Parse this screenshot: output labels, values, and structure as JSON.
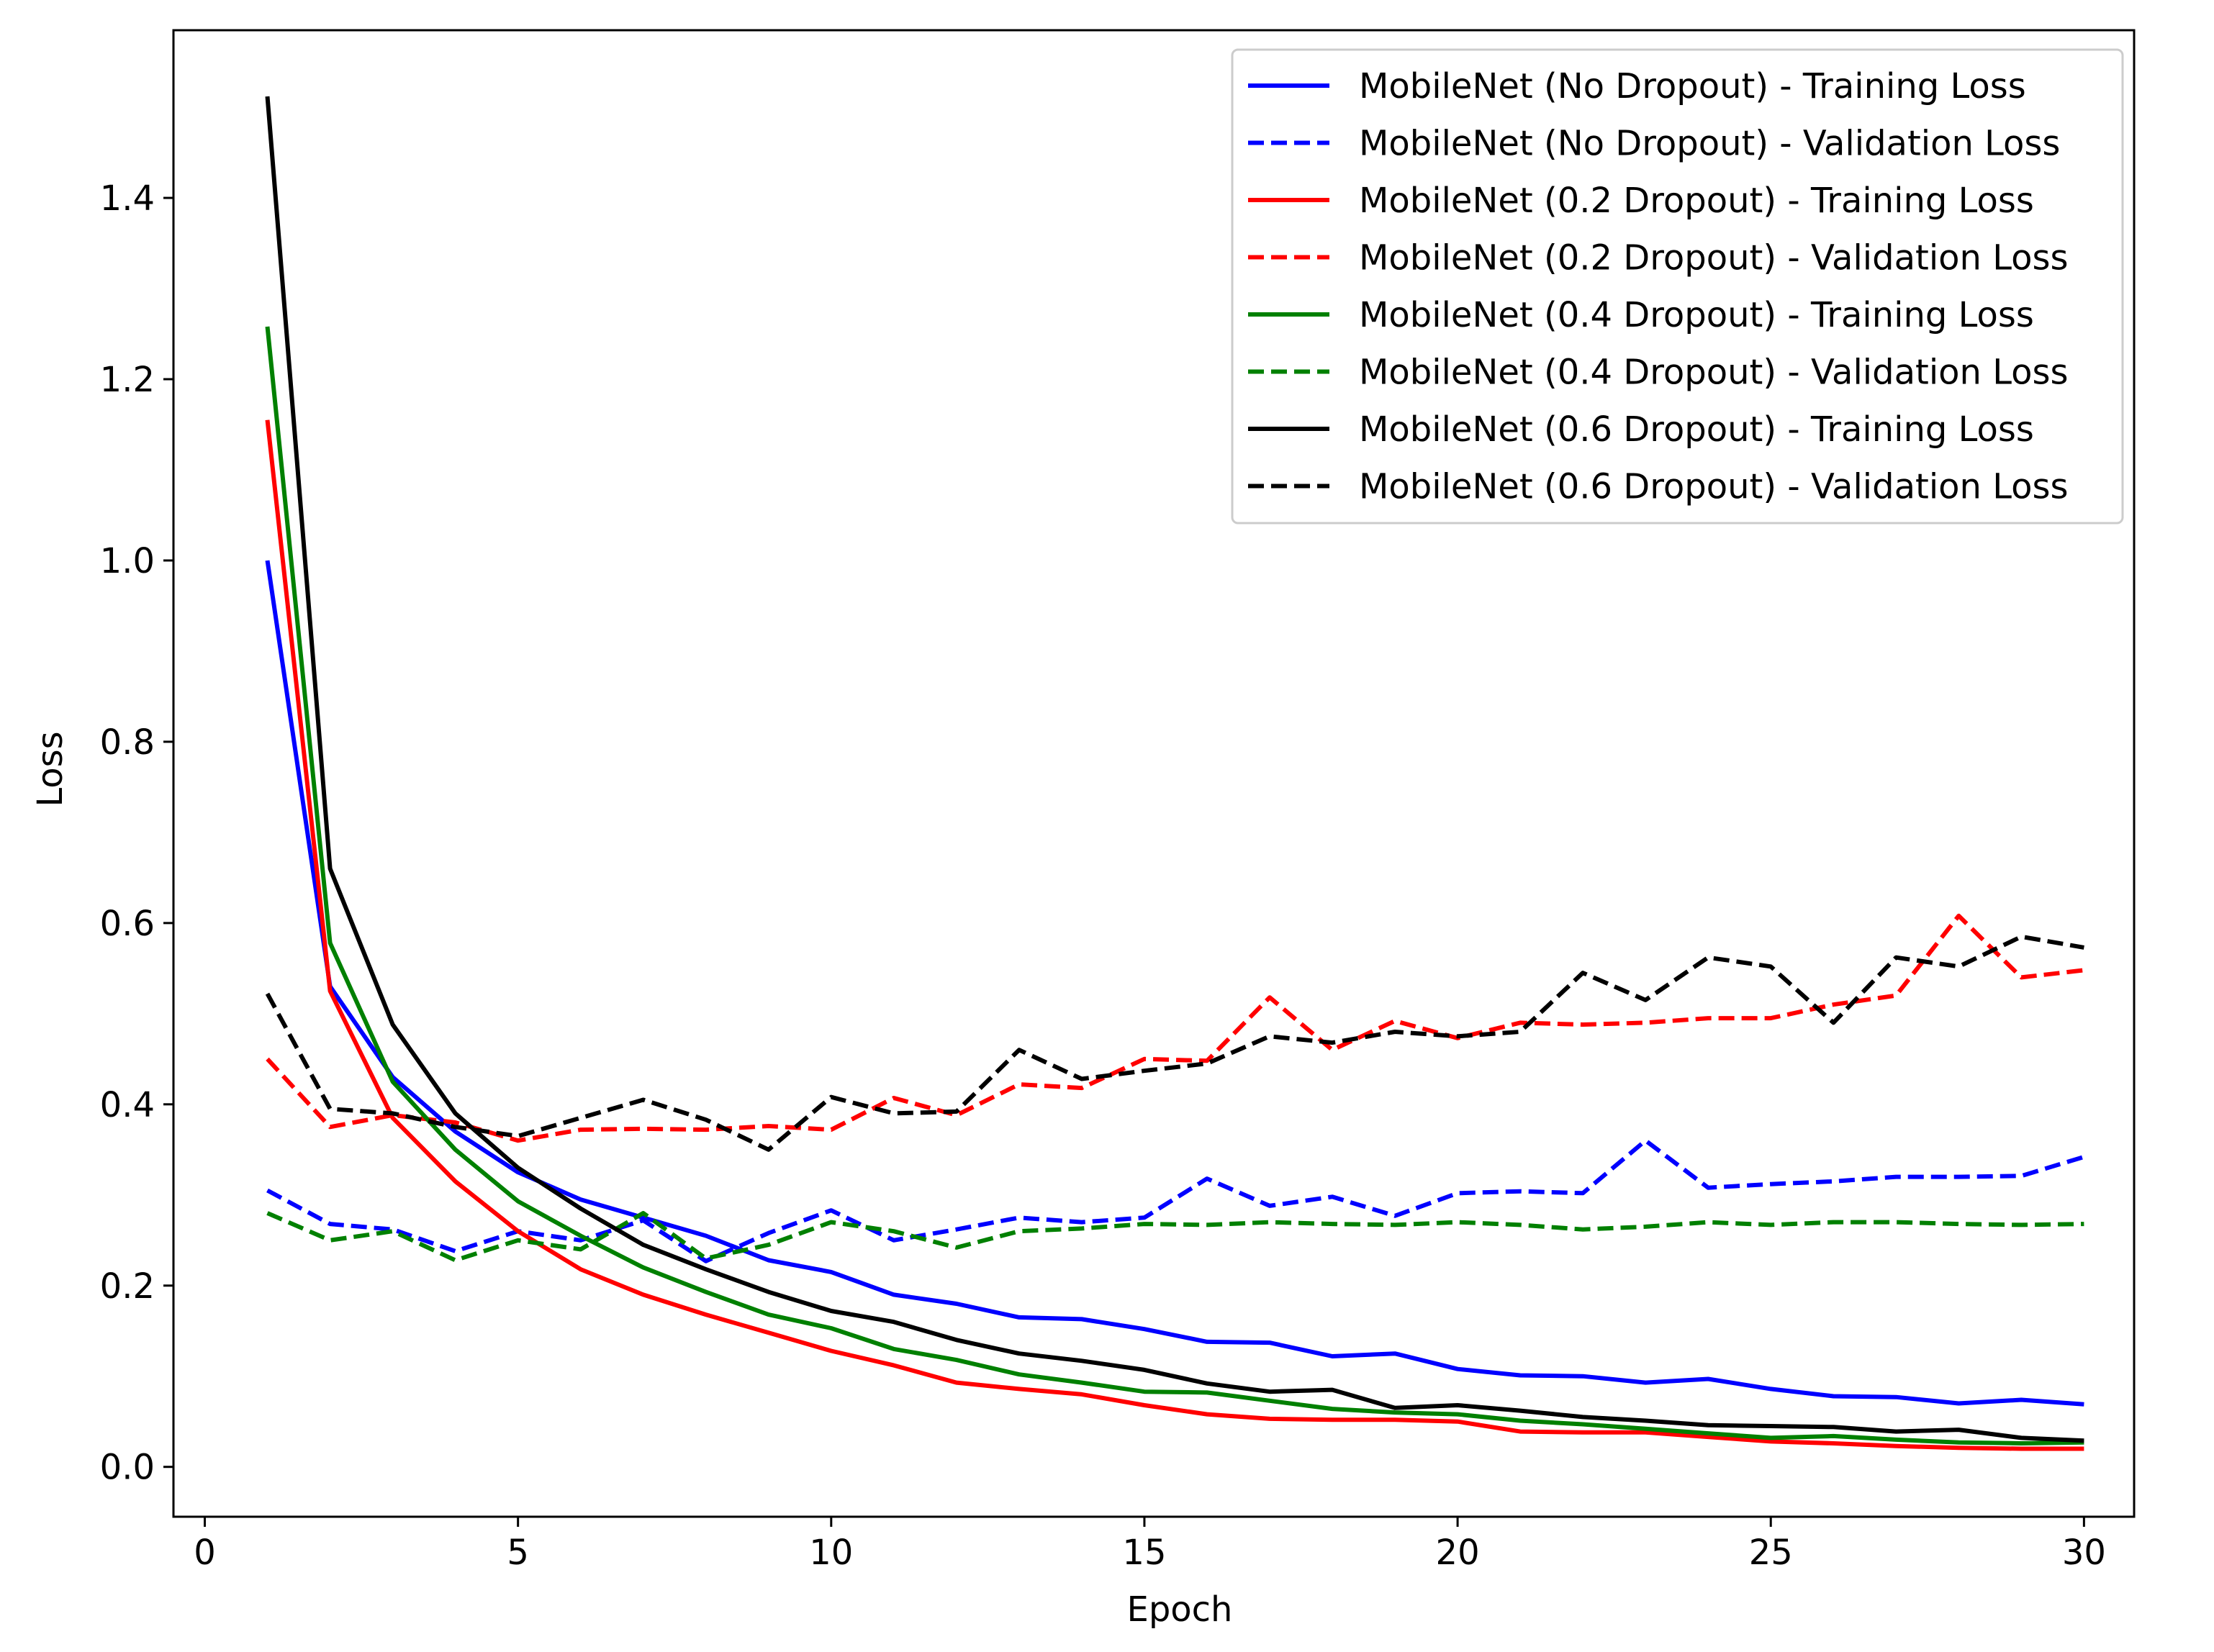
{
  "chart_data": {
    "type": "line",
    "title": "",
    "xlabel": "Epoch",
    "ylabel": "Loss",
    "xlim": [
      -0.5,
      30.8
    ],
    "ylim": [
      -0.055,
      1.585
    ],
    "xticks": [
      0,
      5,
      10,
      15,
      20,
      25,
      30
    ],
    "xtick_labels": [
      "0",
      "5",
      "10",
      "15",
      "20",
      "25",
      "30"
    ],
    "yticks": [
      0.0,
      0.2,
      0.4,
      0.6,
      0.8,
      1.0,
      1.2,
      1.4
    ],
    "ytick_labels": [
      "0.0",
      "0.2",
      "0.4",
      "0.6",
      "0.8",
      "1.0",
      "1.2",
      "1.4"
    ],
    "grid": false,
    "legend_position": "top-right",
    "x": [
      1,
      2,
      3,
      4,
      5,
      6,
      7,
      8,
      9,
      10,
      11,
      12,
      13,
      14,
      15,
      16,
      17,
      18,
      19,
      20,
      21,
      22,
      23,
      24,
      25,
      26,
      27,
      28,
      29,
      30
    ],
    "series": [
      {
        "name": "MobileNet (No Dropout) - Training Loss",
        "color": "#0000ff",
        "style": "solid",
        "values": [
          1.0,
          0.53,
          0.43,
          0.37,
          0.325,
          0.295,
          0.275,
          0.255,
          0.228,
          0.215,
          0.19,
          0.18,
          0.165,
          0.163,
          0.152,
          0.138,
          0.137,
          0.122,
          0.125,
          0.108,
          0.101,
          0.1,
          0.093,
          0.097,
          0.086,
          0.078,
          0.077,
          0.07,
          0.074,
          0.069
        ]
      },
      {
        "name": "MobileNet (No Dropout) - Validation Loss",
        "color": "#0000ff",
        "style": "dashed",
        "values": [
          0.305,
          0.268,
          0.262,
          0.238,
          0.26,
          0.25,
          0.272,
          0.227,
          0.258,
          0.283,
          0.25,
          0.262,
          0.275,
          0.27,
          0.275,
          0.318,
          0.288,
          0.298,
          0.277,
          0.302,
          0.304,
          0.302,
          0.36,
          0.308,
          0.312,
          0.315,
          0.32,
          0.32,
          0.321,
          0.342
        ]
      },
      {
        "name": "MobileNet (0.2 Dropout) - Training Loss",
        "color": "#ff0000",
        "style": "solid",
        "values": [
          1.155,
          0.525,
          0.385,
          0.315,
          0.26,
          0.218,
          0.19,
          0.168,
          0.148,
          0.128,
          0.112,
          0.093,
          0.086,
          0.08,
          0.068,
          0.058,
          0.053,
          0.052,
          0.052,
          0.05,
          0.039,
          0.038,
          0.038,
          0.033,
          0.028,
          0.026,
          0.023,
          0.021,
          0.02,
          0.02
        ]
      },
      {
        "name": "MobileNet (0.2 Dropout) - Validation Loss",
        "color": "#ff0000",
        "style": "dashed",
        "values": [
          0.45,
          0.375,
          0.388,
          0.38,
          0.36,
          0.372,
          0.373,
          0.372,
          0.376,
          0.372,
          0.407,
          0.388,
          0.422,
          0.418,
          0.45,
          0.448,
          0.518,
          0.46,
          0.492,
          0.473,
          0.49,
          0.488,
          0.49,
          0.495,
          0.495,
          0.51,
          0.52,
          0.608,
          0.54,
          0.548
        ]
      },
      {
        "name": "MobileNet (0.4 Dropout) - Training Loss",
        "color": "#008000",
        "style": "solid",
        "values": [
          1.258,
          0.578,
          0.425,
          0.35,
          0.293,
          0.255,
          0.22,
          0.193,
          0.168,
          0.153,
          0.13,
          0.118,
          0.102,
          0.093,
          0.083,
          0.082,
          0.073,
          0.064,
          0.06,
          0.058,
          0.051,
          0.047,
          0.042,
          0.037,
          0.032,
          0.034,
          0.03,
          0.027,
          0.026,
          0.027
        ]
      },
      {
        "name": "MobileNet (0.4 Dropout) - Validation Loss",
        "color": "#008000",
        "style": "dashed",
        "values": [
          0.28,
          0.25,
          0.26,
          0.228,
          0.25,
          0.24,
          0.28,
          0.23,
          0.245,
          0.27,
          0.26,
          0.242,
          0.26,
          0.263,
          0.268,
          0.267,
          0.27,
          0.268,
          0.267,
          0.27,
          0.267,
          0.262,
          0.265,
          0.27,
          0.267,
          0.27,
          0.27,
          0.268,
          0.267,
          0.268
        ]
      },
      {
        "name": "MobileNet (0.6 Dropout) - Training Loss",
        "color": "#000000",
        "style": "solid",
        "values": [
          1.512,
          0.66,
          0.488,
          0.39,
          0.33,
          0.285,
          0.245,
          0.218,
          0.193,
          0.172,
          0.16,
          0.14,
          0.125,
          0.117,
          0.107,
          0.092,
          0.083,
          0.085,
          0.065,
          0.068,
          0.062,
          0.055,
          0.051,
          0.046,
          0.045,
          0.044,
          0.039,
          0.041,
          0.032,
          0.029
        ]
      },
      {
        "name": "MobileNet (0.6 Dropout) - Validation Loss",
        "color": "#000000",
        "style": "dashed",
        "values": [
          0.522,
          0.395,
          0.39,
          0.375,
          0.365,
          0.385,
          0.405,
          0.383,
          0.35,
          0.408,
          0.39,
          0.392,
          0.46,
          0.428,
          0.437,
          0.445,
          0.475,
          0.468,
          0.48,
          0.475,
          0.48,
          0.545,
          0.515,
          0.562,
          0.552,
          0.49,
          0.562,
          0.552,
          0.585,
          0.573
        ]
      }
    ]
  }
}
